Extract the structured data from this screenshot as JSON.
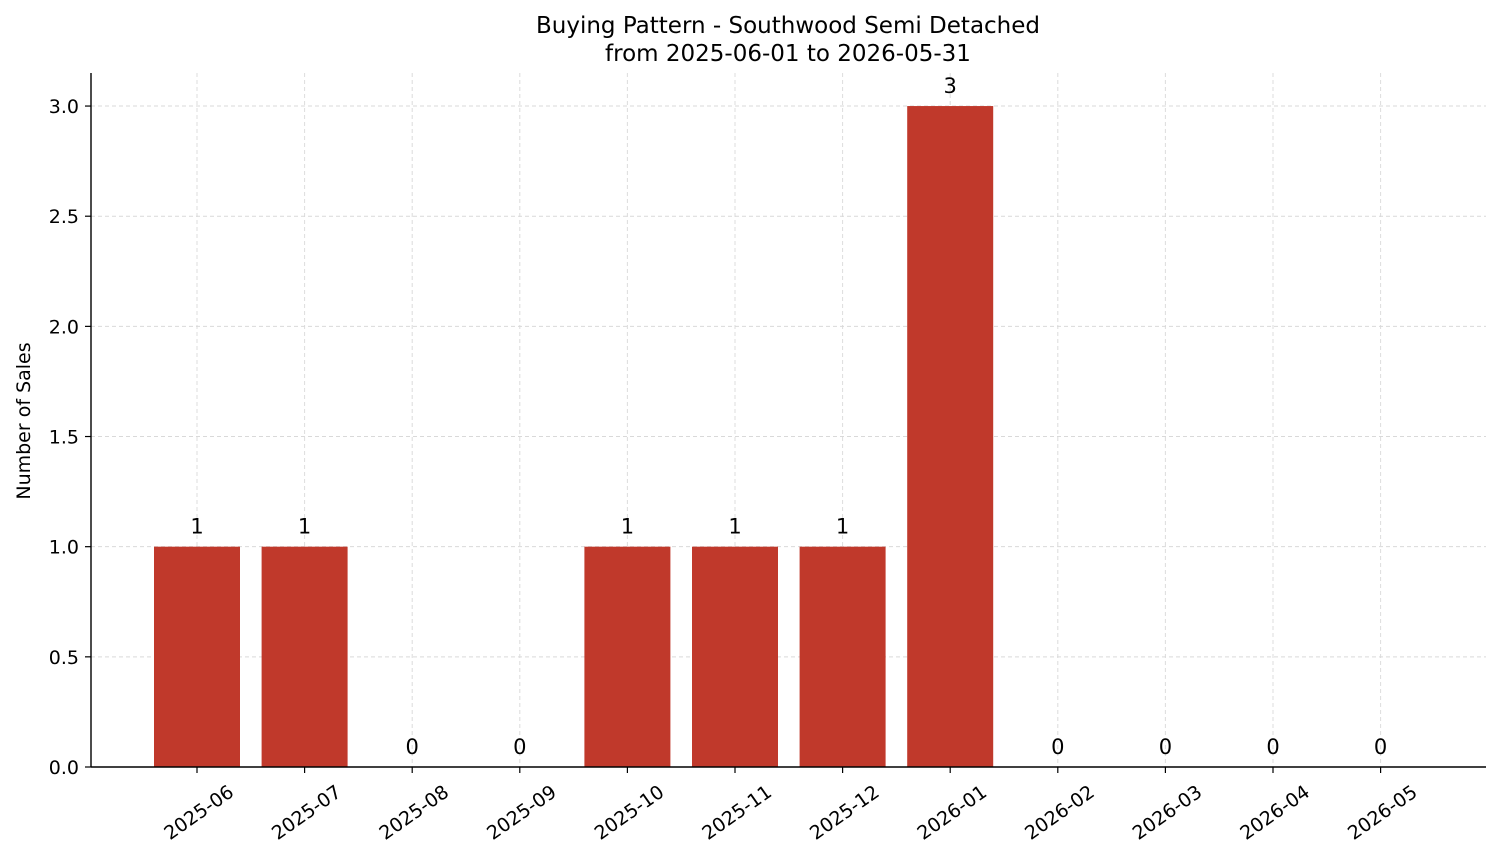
{
  "chart_data": {
    "type": "bar",
    "title": "Buying Pattern - Southwood Semi Detached",
    "subtitle": "from 2025-06-01 to 2026-05-31",
    "xlabel": "",
    "ylabel": "Number of Sales",
    "categories": [
      "2025-06",
      "2025-07",
      "2025-08",
      "2025-09",
      "2025-10",
      "2025-11",
      "2025-12",
      "2026-01",
      "2026-02",
      "2026-03",
      "2026-04",
      "2026-05"
    ],
    "values": [
      1,
      1,
      0,
      0,
      1,
      1,
      1,
      3,
      0,
      0,
      0,
      0
    ],
    "value_labels": [
      "1",
      "1",
      "0",
      "0",
      "1",
      "1",
      "1",
      "3",
      "0",
      "0",
      "0",
      "0"
    ],
    "ylim": [
      0,
      3.15
    ],
    "yticks": [
      "0.0",
      "0.5",
      "1.0",
      "1.5",
      "2.0",
      "2.5",
      "3.0"
    ],
    "grid": true,
    "legend": "none",
    "colors": {
      "bar": "#c0392b",
      "grid": "#d9d9d9",
      "axis": "#000000"
    }
  }
}
